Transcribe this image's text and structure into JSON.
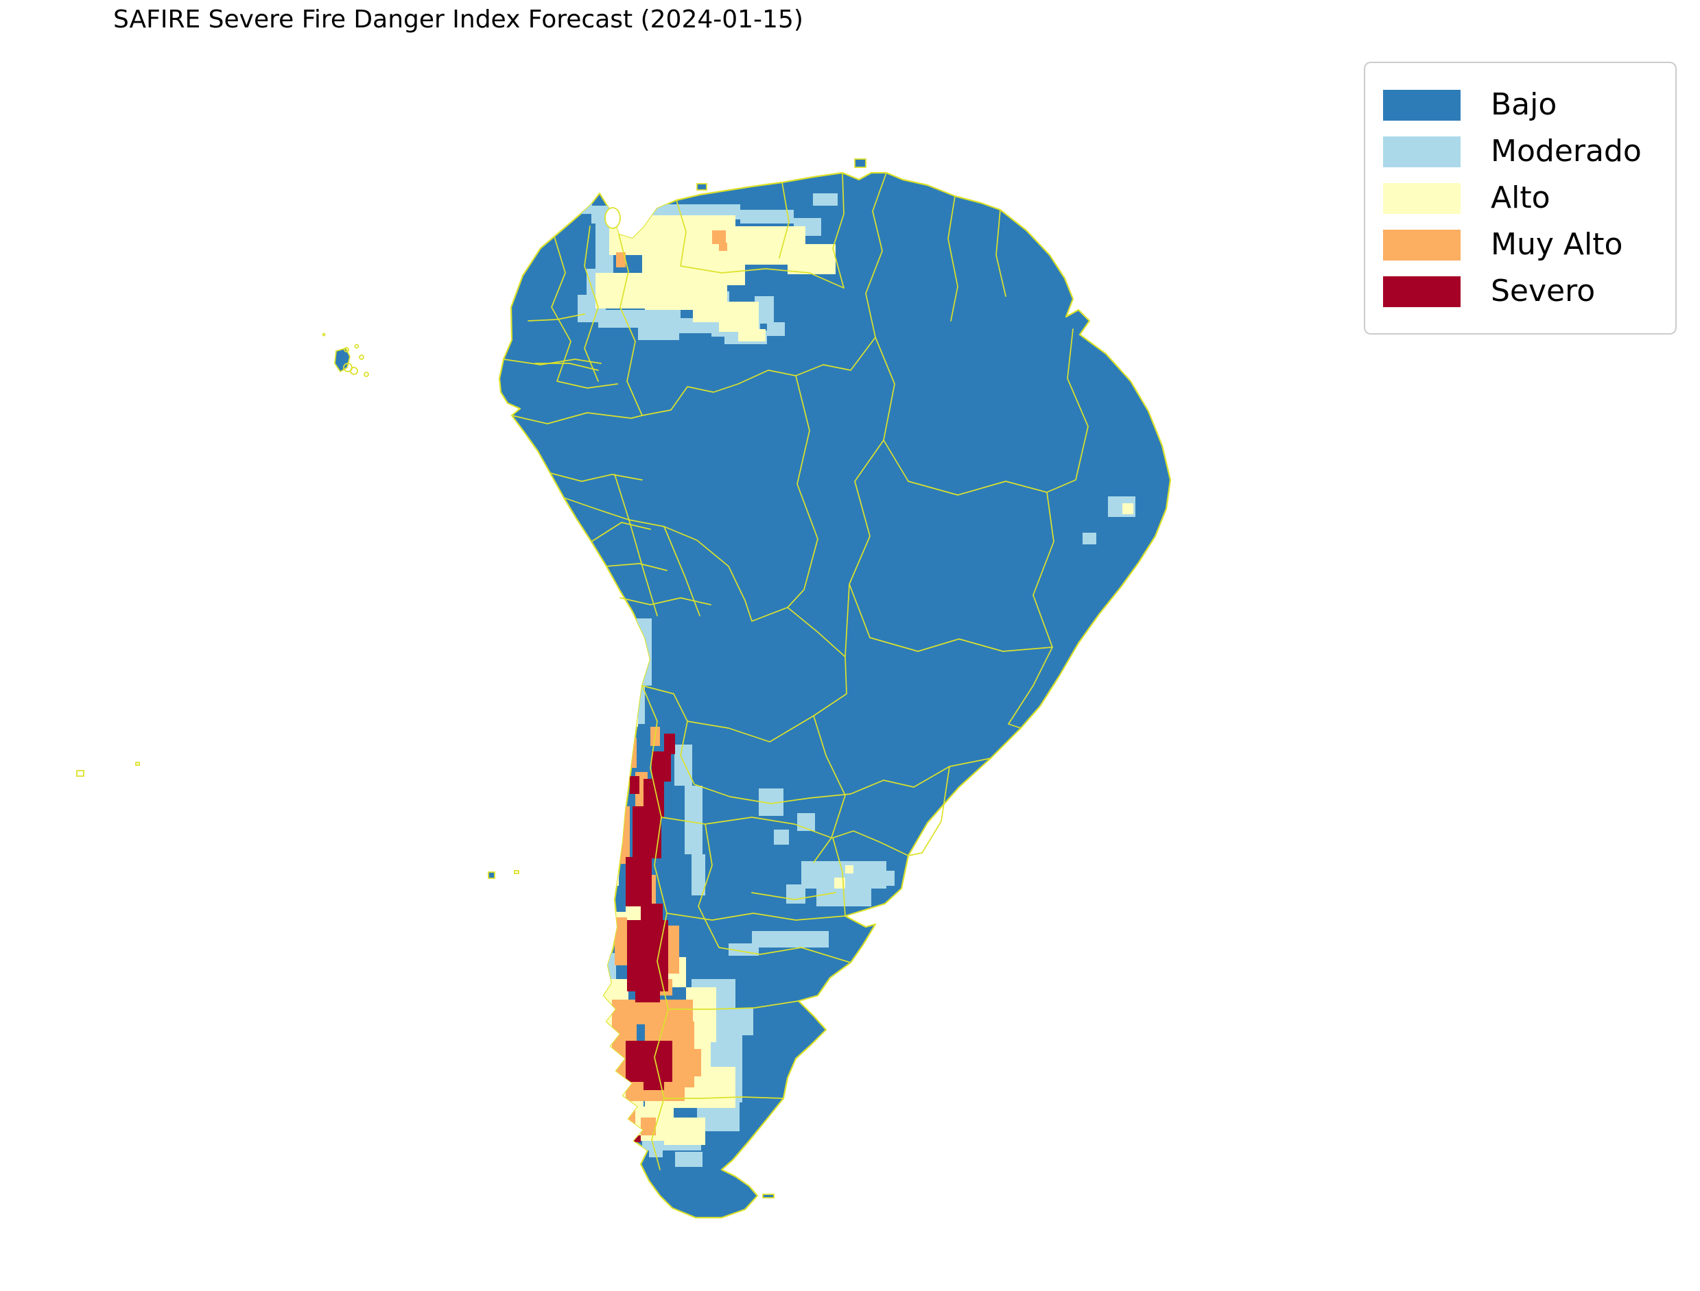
{
  "title": "SAFIRE Severe Fire Danger Index Forecast (2024-01-15)",
  "colors": {
    "bajo": "#2e7cb7",
    "moderado": "#abd9e9",
    "alto": "#fefec0",
    "muy_alto": "#fcae61",
    "severo": "#a50026",
    "boundary": "#dce22b",
    "legend_border": "#cccccc",
    "background": "#ffffff",
    "title_color": "#000000"
  },
  "legend": {
    "items": [
      {
        "id": "bajo",
        "label": "Bajo"
      },
      {
        "id": "moderado",
        "label": "Moderado"
      },
      {
        "id": "alto",
        "label": "Alto"
      },
      {
        "id": "muy_alto",
        "label": "Muy Alto"
      },
      {
        "id": "severo",
        "label": "Severo"
      }
    ]
  },
  "map": {
    "overlay": {
      "moderado": [
        [
          815,
          272,
          48,
          40
        ],
        [
          862,
          300,
          26,
          26
        ],
        [
          935,
          298,
          144,
          22
        ],
        [
          1079,
          306,
          78,
          20
        ],
        [
          1157,
          318,
          40,
          26
        ],
        [
          868,
          322,
          26,
          78
        ],
        [
          855,
          392,
          28,
          62
        ],
        [
          842,
          430,
          30,
          40
        ],
        [
          1002,
          330,
          22,
          22
        ],
        [
          1120,
          340,
          20,
          20
        ],
        [
          872,
          452,
          120,
          26
        ],
        [
          960,
          464,
          110,
          22
        ],
        [
          1056,
          470,
          52,
          20
        ],
        [
          930,
          478,
          60,
          18
        ],
        [
          1185,
          282,
          36,
          18
        ],
        [
          1037,
          425,
          26,
          66
        ],
        [
          1100,
          432,
          28,
          40
        ],
        [
          1056,
          482,
          62,
          20
        ],
        [
          1118,
          470,
          26,
          20
        ],
        [
          1615,
          724,
          40,
          30
        ],
        [
          1578,
          777,
          20,
          17
        ],
        [
          1168,
          1256,
          124,
          40
        ],
        [
          1190,
          1292,
          80,
          30
        ],
        [
          1146,
          1290,
          28,
          28
        ],
        [
          1282,
          1270,
          22,
          22
        ],
        [
          1106,
          1150,
          36,
          40
        ],
        [
          1162,
          1186,
          26,
          26
        ],
        [
          1128,
          1210,
          22,
          22
        ],
        [
          1096,
          1358,
          112,
          24
        ],
        [
          1062,
          1376,
          44,
          18
        ],
        [
          928,
          902,
          22,
          98
        ],
        [
          916,
          1000,
          24,
          56
        ],
        [
          893,
          1052,
          24,
          80
        ],
        [
          983,
          1086,
          26,
          60
        ],
        [
          998,
          1146,
          26,
          100
        ],
        [
          1008,
          1246,
          20,
          60
        ],
        [
          893,
          1132,
          16,
          48
        ],
        [
          1008,
          1428,
          64,
          86
        ],
        [
          1036,
          1496,
          46,
          112
        ],
        [
          1016,
          1594,
          62,
          56
        ],
        [
          936,
          1638,
          86,
          40
        ],
        [
          896,
          1436,
          18,
          60
        ],
        [
          1072,
          1470,
          26,
          40
        ],
        [
          944,
          1596,
          30,
          22
        ],
        [
          946,
          1656,
          20,
          32
        ],
        [
          984,
          1680,
          40,
          22
        ],
        [
          880,
          1390,
          18,
          40
        ]
      ],
      "alto": [
        [
          888,
          314,
          184,
          58
        ],
        [
          936,
          368,
          150,
          48
        ],
        [
          868,
          398,
          104,
          52
        ],
        [
          1070,
          330,
          104,
          56
        ],
        [
          1148,
          356,
          70,
          44
        ],
        [
          940,
          412,
          120,
          40
        ],
        [
          1010,
          446,
          60,
          24
        ],
        [
          1048,
          440,
          58,
          44
        ],
        [
          1076,
          480,
          40,
          18
        ],
        [
          1636,
          734,
          16,
          16
        ],
        [
          1216,
          1280,
          16,
          16
        ],
        [
          1232,
          1262,
          12,
          12
        ],
        [
          902,
          1016,
          28,
          44
        ],
        [
          878,
          1096,
          24,
          90
        ],
        [
          880,
          1190,
          22,
          100
        ],
        [
          912,
          1296,
          26,
          56
        ],
        [
          896,
          1330,
          22,
          60
        ],
        [
          886,
          1248,
          16,
          44
        ],
        [
          930,
          1396,
          70,
          44
        ],
        [
          1000,
          1440,
          44,
          80
        ],
        [
          876,
          1428,
          40,
          110
        ],
        [
          1006,
          1520,
          30,
          70
        ],
        [
          940,
          1552,
          90,
          64
        ],
        [
          1028,
          1556,
          44,
          60
        ],
        [
          872,
          1552,
          66,
          86
        ],
        [
          912,
          1614,
          70,
          50
        ],
        [
          968,
          1630,
          60,
          40
        ]
      ],
      "muy_alto": [
        [
          1038,
          336,
          20,
          20
        ],
        [
          1048,
          354,
          12,
          12
        ],
        [
          898,
          368,
          14,
          22
        ],
        [
          948,
          1060,
          14,
          28
        ],
        [
          912,
          1076,
          16,
          44
        ],
        [
          926,
          1126,
          18,
          58
        ],
        [
          902,
          1176,
          16,
          84
        ],
        [
          936,
          1276,
          20,
          60
        ],
        [
          896,
          1338,
          18,
          70
        ],
        [
          972,
          1350,
          18,
          70
        ],
        [
          930,
          1428,
          50,
          24
        ],
        [
          892,
          1458,
          118,
          36
        ],
        [
          892,
          1490,
          36,
          96
        ],
        [
          978,
          1490,
          34,
          96
        ],
        [
          912,
          1576,
          86,
          30
        ],
        [
          940,
          1486,
          40,
          36
        ],
        [
          1002,
          1530,
          20,
          40
        ],
        [
          894,
          1612,
          32,
          46
        ],
        [
          934,
          1630,
          22,
          26
        ]
      ],
      "severo": [
        [
          968,
          1070,
          16,
          30
        ],
        [
          950,
          1096,
          28,
          44
        ],
        [
          938,
          1136,
          30,
          56
        ],
        [
          918,
          1132,
          14,
          26
        ],
        [
          922,
          1176,
          42,
          76
        ],
        [
          912,
          1250,
          38,
          72
        ],
        [
          934,
          1318,
          32,
          28
        ],
        [
          914,
          1342,
          60,
          104
        ],
        [
          926,
          1440,
          36,
          22
        ],
        [
          912,
          1518,
          68,
          60
        ],
        [
          938,
          1574,
          30,
          16
        ],
        [
          896,
          1610,
          12,
          12
        ],
        [
          902,
          1640,
          12,
          12
        ],
        [
          924,
          1656,
          10,
          10
        ],
        [
          962,
          1098,
          12,
          12
        ]
      ]
    }
  }
}
